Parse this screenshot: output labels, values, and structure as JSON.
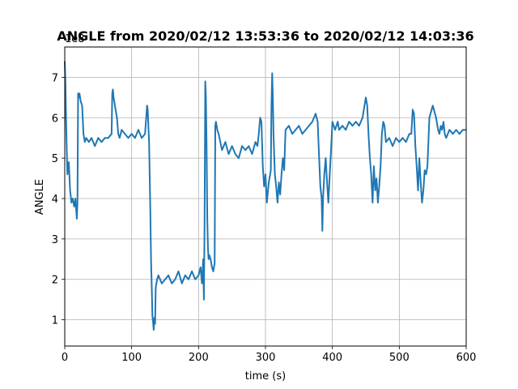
{
  "chart_data": {
    "type": "line",
    "title_bold": "ANGLE",
    "title_rest": " from 2020/02/12 13:53:36 to 2020/02/12 14:03:36",
    "xlabel": "time (s)",
    "ylabel": "ANGLE",
    "y_offset_text": "1e8",
    "y_scale": 100000000,
    "xlim": [
      0,
      600
    ],
    "ylim": [
      0.35,
      7.75
    ],
    "x_ticks": [
      0,
      100,
      200,
      300,
      400,
      500,
      600
    ],
    "x_tick_labels": [
      "0",
      "100",
      "200",
      "300",
      "400",
      "500",
      "600"
    ],
    "y_ticks": [
      1,
      2,
      3,
      4,
      5,
      6,
      7
    ],
    "y_tick_labels": [
      "1",
      "2",
      "3",
      "4",
      "5",
      "6",
      "7"
    ],
    "grid": true,
    "line_color": "#1f77b4",
    "series": [
      {
        "x": [
          0,
          1,
          2,
          3,
          4,
          6,
          8,
          10,
          12,
          14,
          16,
          18,
          19,
          20,
          21,
          22,
          24,
          26,
          28,
          30,
          32,
          36,
          40,
          45,
          50,
          55,
          60,
          65,
          70,
          71,
          72,
          73,
          74,
          76,
          78,
          80,
          82,
          85,
          90,
          95,
          100,
          105,
          110,
          115,
          120,
          123,
          124,
          125,
          126,
          127,
          128,
          129,
          130,
          131,
          132,
          133,
          134,
          135,
          136,
          138,
          140,
          145,
          150,
          155,
          160,
          165,
          170,
          175,
          180,
          185,
          190,
          195,
          200,
          203,
          205,
          207,
          208,
          209,
          210,
          211,
          212,
          213,
          214,
          215,
          216,
          218,
          220,
          222,
          224,
          225,
          226,
          228,
          230,
          235,
          240,
          245,
          250,
          255,
          260,
          265,
          270,
          275,
          280,
          285,
          288,
          290,
          292,
          294,
          296,
          298,
          300,
          302,
          305,
          308,
          309,
          310,
          311,
          312,
          314,
          316,
          318,
          320,
          322,
          324,
          326,
          328,
          330,
          335,
          340,
          345,
          350,
          355,
          360,
          365,
          370,
          375,
          378,
          380,
          382,
          384,
          385,
          386,
          388,
          390,
          392,
          394,
          396,
          398,
          400,
          402,
          404,
          406,
          408,
          410,
          415,
          420,
          425,
          430,
          435,
          440,
          445,
          450,
          452,
          454,
          456,
          458,
          460,
          462,
          464,
          466,
          468,
          470,
          472,
          474,
          476,
          478,
          480,
          485,
          490,
          495,
          500,
          505,
          510,
          515,
          518,
          520,
          522,
          524,
          526,
          528,
          530,
          532,
          534,
          536,
          538,
          540,
          542,
          545,
          550,
          555,
          558,
          560,
          562,
          564,
          566,
          568,
          570,
          575,
          580,
          585,
          590,
          595,
          600
        ],
        "y": [
          7.4,
          6.9,
          5.9,
          5.2,
          4.6,
          4.9,
          4.2,
          3.9,
          4.0,
          3.8,
          4.0,
          3.5,
          3.9,
          6.6,
          6.5,
          6.6,
          6.4,
          6.3,
          5.6,
          5.4,
          5.5,
          5.4,
          5.5,
          5.3,
          5.5,
          5.4,
          5.5,
          5.5,
          5.6,
          6.6,
          6.7,
          6.5,
          6.4,
          6.2,
          6.0,
          5.6,
          5.5,
          5.7,
          5.6,
          5.5,
          5.6,
          5.5,
          5.7,
          5.5,
          5.6,
          6.3,
          6.2,
          5.8,
          5.4,
          4.5,
          3.6,
          2.5,
          1.8,
          1.1,
          0.95,
          0.75,
          1.05,
          0.9,
          1.8,
          2.0,
          2.1,
          1.9,
          2.0,
          2.1,
          1.9,
          2.0,
          2.2,
          1.9,
          2.1,
          2.0,
          2.2,
          2.0,
          2.1,
          2.3,
          1.9,
          2.5,
          1.5,
          3.5,
          6.9,
          6.5,
          5.2,
          3.5,
          2.8,
          2.5,
          2.6,
          2.5,
          2.3,
          2.2,
          2.4,
          5.8,
          5.9,
          5.7,
          5.6,
          5.2,
          5.4,
          5.1,
          5.3,
          5.1,
          5.0,
          5.3,
          5.2,
          5.3,
          5.1,
          5.4,
          5.3,
          5.6,
          6.0,
          5.9,
          4.8,
          4.3,
          4.6,
          3.9,
          4.4,
          4.7,
          6.3,
          7.1,
          6.5,
          5.6,
          4.6,
          4.3,
          3.9,
          4.4,
          4.1,
          4.6,
          5.0,
          4.7,
          5.7,
          5.8,
          5.6,
          5.7,
          5.8,
          5.6,
          5.7,
          5.8,
          5.9,
          6.1,
          5.9,
          5.1,
          4.3,
          4.0,
          3.2,
          4.0,
          4.6,
          5.0,
          4.4,
          3.9,
          4.6,
          5.2,
          5.9,
          5.8,
          5.7,
          5.8,
          5.9,
          5.7,
          5.8,
          5.7,
          5.9,
          5.8,
          5.9,
          5.8,
          6.0,
          6.5,
          6.3,
          5.6,
          5.0,
          4.6,
          3.9,
          4.8,
          4.2,
          4.5,
          3.9,
          4.3,
          4.8,
          5.6,
          5.9,
          5.8,
          5.4,
          5.5,
          5.3,
          5.5,
          5.4,
          5.5,
          5.4,
          5.6,
          5.6,
          6.2,
          6.1,
          5.3,
          4.8,
          4.2,
          5.0,
          4.4,
          3.9,
          4.2,
          4.7,
          4.6,
          4.8,
          6.0,
          6.3,
          6.0,
          5.7,
          5.6,
          5.8,
          5.7,
          5.9,
          5.6,
          5.5,
          5.7,
          5.6,
          5.7,
          5.6,
          5.7,
          5.7
        ]
      }
    ]
  }
}
